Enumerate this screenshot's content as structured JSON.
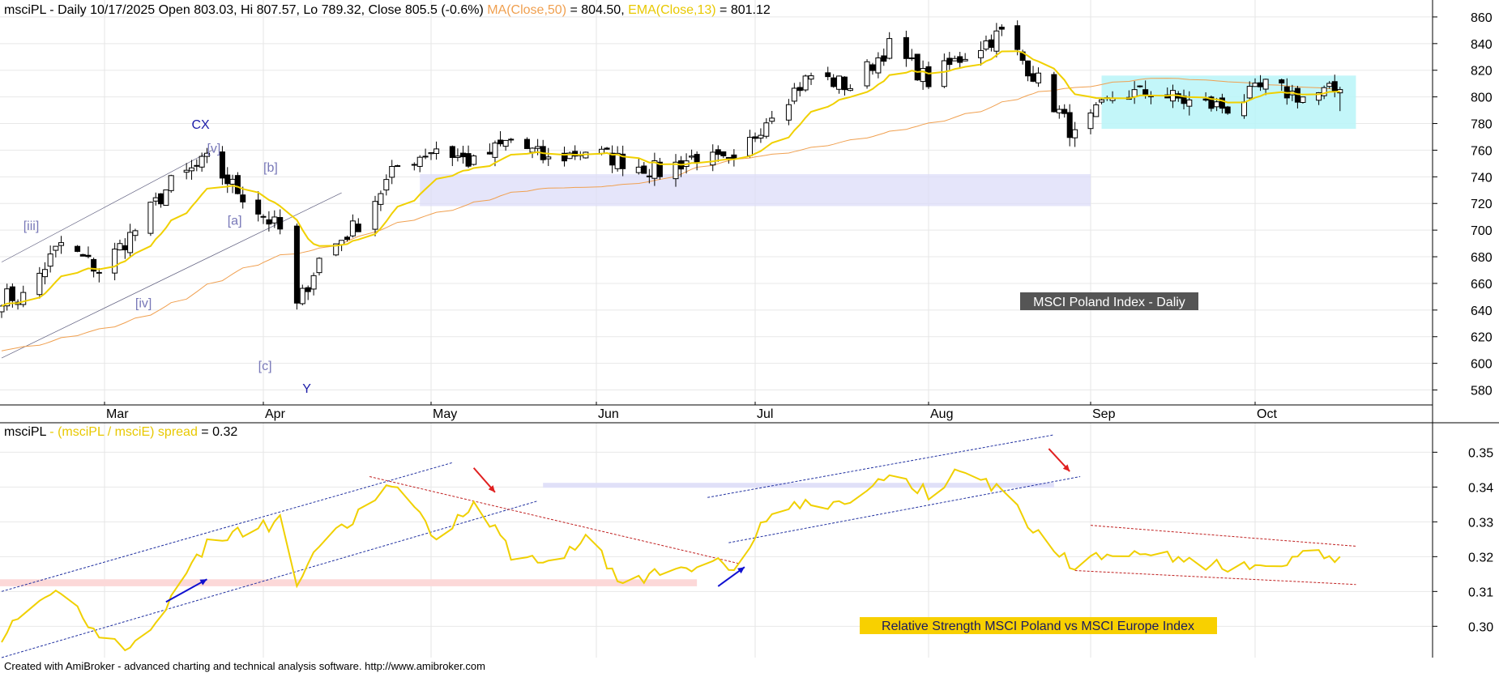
{
  "header": {
    "symbol": "msciPL",
    "main_text": " - Daily 10/17/2025 Open 803.03, Hi 807.57, Lo 789.32, Close 805.5 (-0.6%) ",
    "ma_label": "MA(Close,50)",
    "ma_value": " = 804.50, ",
    "ema_label": "EMA(Close,13)",
    "ema_value": " = 801.12"
  },
  "lower_header": {
    "symbol": "msciPL",
    "dash": " - ",
    "spread_label": "(msciPL / msciE) spread",
    "spread_value": " = 0.32"
  },
  "footer": "Created with AmiBroker - advanced charting and technical analysis software. http://www.amibroker.com",
  "labels": {
    "main_title": "MSCI Poland Index - Daliy",
    "relative_strength": "Relative Strength MSCI Poland vs MSCI Europe Index"
  },
  "colors": {
    "ma": "#f0a050",
    "ema": "#f0d000",
    "spread": "#f0d000",
    "wave_dark": "#1c1ca8",
    "wave_light": "#7878b8",
    "consolidation_box": "#b8f4f8",
    "support_band": "#dcdcf8",
    "rs_band": "#fcd8d8",
    "title_box": "#555555",
    "rs_box": "#f8d000"
  },
  "chart_data": [
    {
      "type": "candlestick",
      "title": "MSCI Poland Index - Daliy",
      "x_months": [
        "Mar",
        "Apr",
        "May",
        "Jun",
        "Jul",
        "Aug",
        "Sep",
        "Oct"
      ],
      "y_ticks": [
        580,
        600,
        620,
        640,
        660,
        680,
        700,
        720,
        740,
        760,
        780,
        800,
        820,
        840,
        860
      ],
      "ylim": [
        570,
        866
      ],
      "series_close_approx": [
        [
          "2025-02-14",
          650
        ],
        [
          "2025-02-21",
          690
        ],
        [
          "2025-02-28",
          670
        ],
        [
          "2025-03-07",
          700
        ],
        [
          "2025-03-14",
          735
        ],
        [
          "2025-03-21",
          752
        ],
        [
          "2025-03-28",
          726
        ],
        [
          "2025-04-04",
          700
        ],
        [
          "2025-04-07",
          642
        ],
        [
          "2025-04-11",
          678
        ],
        [
          "2025-04-18",
          705
        ],
        [
          "2025-04-25",
          748
        ],
        [
          "2025-05-02",
          762
        ],
        [
          "2025-05-09",
          750
        ],
        [
          "2025-05-16",
          768
        ],
        [
          "2025-05-23",
          752
        ],
        [
          "2025-05-30",
          760
        ],
        [
          "2025-06-06",
          752
        ],
        [
          "2025-06-13",
          744
        ],
        [
          "2025-06-20",
          756
        ],
        [
          "2025-06-27",
          748
        ],
        [
          "2025-07-04",
          790
        ],
        [
          "2025-07-11",
          816
        ],
        [
          "2025-07-18",
          808
        ],
        [
          "2025-07-25",
          838
        ],
        [
          "2025-08-01",
          812
        ],
        [
          "2025-08-08",
          832
        ],
        [
          "2025-08-15",
          848
        ],
        [
          "2025-08-22",
          812
        ],
        [
          "2025-08-29",
          770
        ],
        [
          "2025-09-05",
          800
        ],
        [
          "2025-09-12",
          804
        ],
        [
          "2025-09-19",
          796
        ],
        [
          "2025-09-26",
          792
        ],
        [
          "2025-10-03",
          808
        ],
        [
          "2025-10-10",
          800
        ],
        [
          "2025-10-17",
          805.5
        ]
      ],
      "last_bar": {
        "date": "10/17/2025",
        "open": 803.03,
        "high": 807.57,
        "low": 789.32,
        "close": 805.5,
        "change_pct": -0.6
      },
      "indicators": [
        {
          "name": "MA(Close,50)",
          "last": 804.5
        },
        {
          "name": "EMA(Close,13)",
          "last": 801.12
        }
      ],
      "annotations": [
        "[iii]",
        "[iv]",
        "[v]",
        "CX",
        "[a]",
        "[b]",
        "[c]",
        "Y"
      ],
      "zones": [
        {
          "kind": "support band",
          "from": "2025-04-29",
          "to": "2025-09-01",
          "y_range": [
            718,
            742
          ]
        },
        {
          "kind": "consolidation box",
          "from": "2025-09-03",
          "to": "2025-10-20",
          "y_range": [
            776,
            816
          ]
        }
      ]
    },
    {
      "type": "line",
      "title": "Relative Strength MSCI Poland vs MSCI Europe Index",
      "series": [
        {
          "name": "(msciPL / msciE) spread",
          "last": 0.32,
          "points": [
            [
              "2025-02-14",
              0.302
            ],
            [
              "2025-02-21",
              0.31
            ],
            [
              "2025-02-28",
              0.298
            ],
            [
              "2025-03-06",
              0.293
            ],
            [
              "2025-03-14",
              0.308
            ],
            [
              "2025-03-21",
              0.324
            ],
            [
              "2025-03-28",
              0.327
            ],
            [
              "2025-04-04",
              0.33
            ],
            [
              "2025-04-07",
              0.313
            ],
            [
              "2025-04-11",
              0.322
            ],
            [
              "2025-04-18",
              0.332
            ],
            [
              "2025-04-24",
              0.341
            ],
            [
              "2025-05-02",
              0.325
            ],
            [
              "2025-05-09",
              0.336
            ],
            [
              "2025-05-16",
              0.321
            ],
            [
              "2025-05-23",
              0.318
            ],
            [
              "2025-05-30",
              0.326
            ],
            [
              "2025-06-06",
              0.312
            ],
            [
              "2025-06-13",
              0.315
            ],
            [
              "2025-06-20",
              0.318
            ],
            [
              "2025-06-27",
              0.318
            ],
            [
              "2025-07-04",
              0.333
            ],
            [
              "2025-07-11",
              0.335
            ],
            [
              "2025-07-18",
              0.335
            ],
            [
              "2025-07-25",
              0.344
            ],
            [
              "2025-08-01",
              0.338
            ],
            [
              "2025-08-08",
              0.346
            ],
            [
              "2025-08-15",
              0.338
            ],
            [
              "2025-08-22",
              0.327
            ],
            [
              "2025-08-29",
              0.317
            ],
            [
              "2025-09-05",
              0.322
            ],
            [
              "2025-09-12",
              0.322
            ],
            [
              "2025-09-19",
              0.318
            ],
            [
              "2025-09-26",
              0.317
            ],
            [
              "2025-10-03",
              0.316
            ],
            [
              "2025-10-10",
              0.32
            ],
            [
              "2025-10-17",
              0.32
            ]
          ]
        }
      ],
      "y_ticks": [
        0.3,
        0.31,
        0.32,
        0.33,
        0.34,
        0.35
      ],
      "ylim": [
        0.291,
        0.358
      ]
    }
  ]
}
